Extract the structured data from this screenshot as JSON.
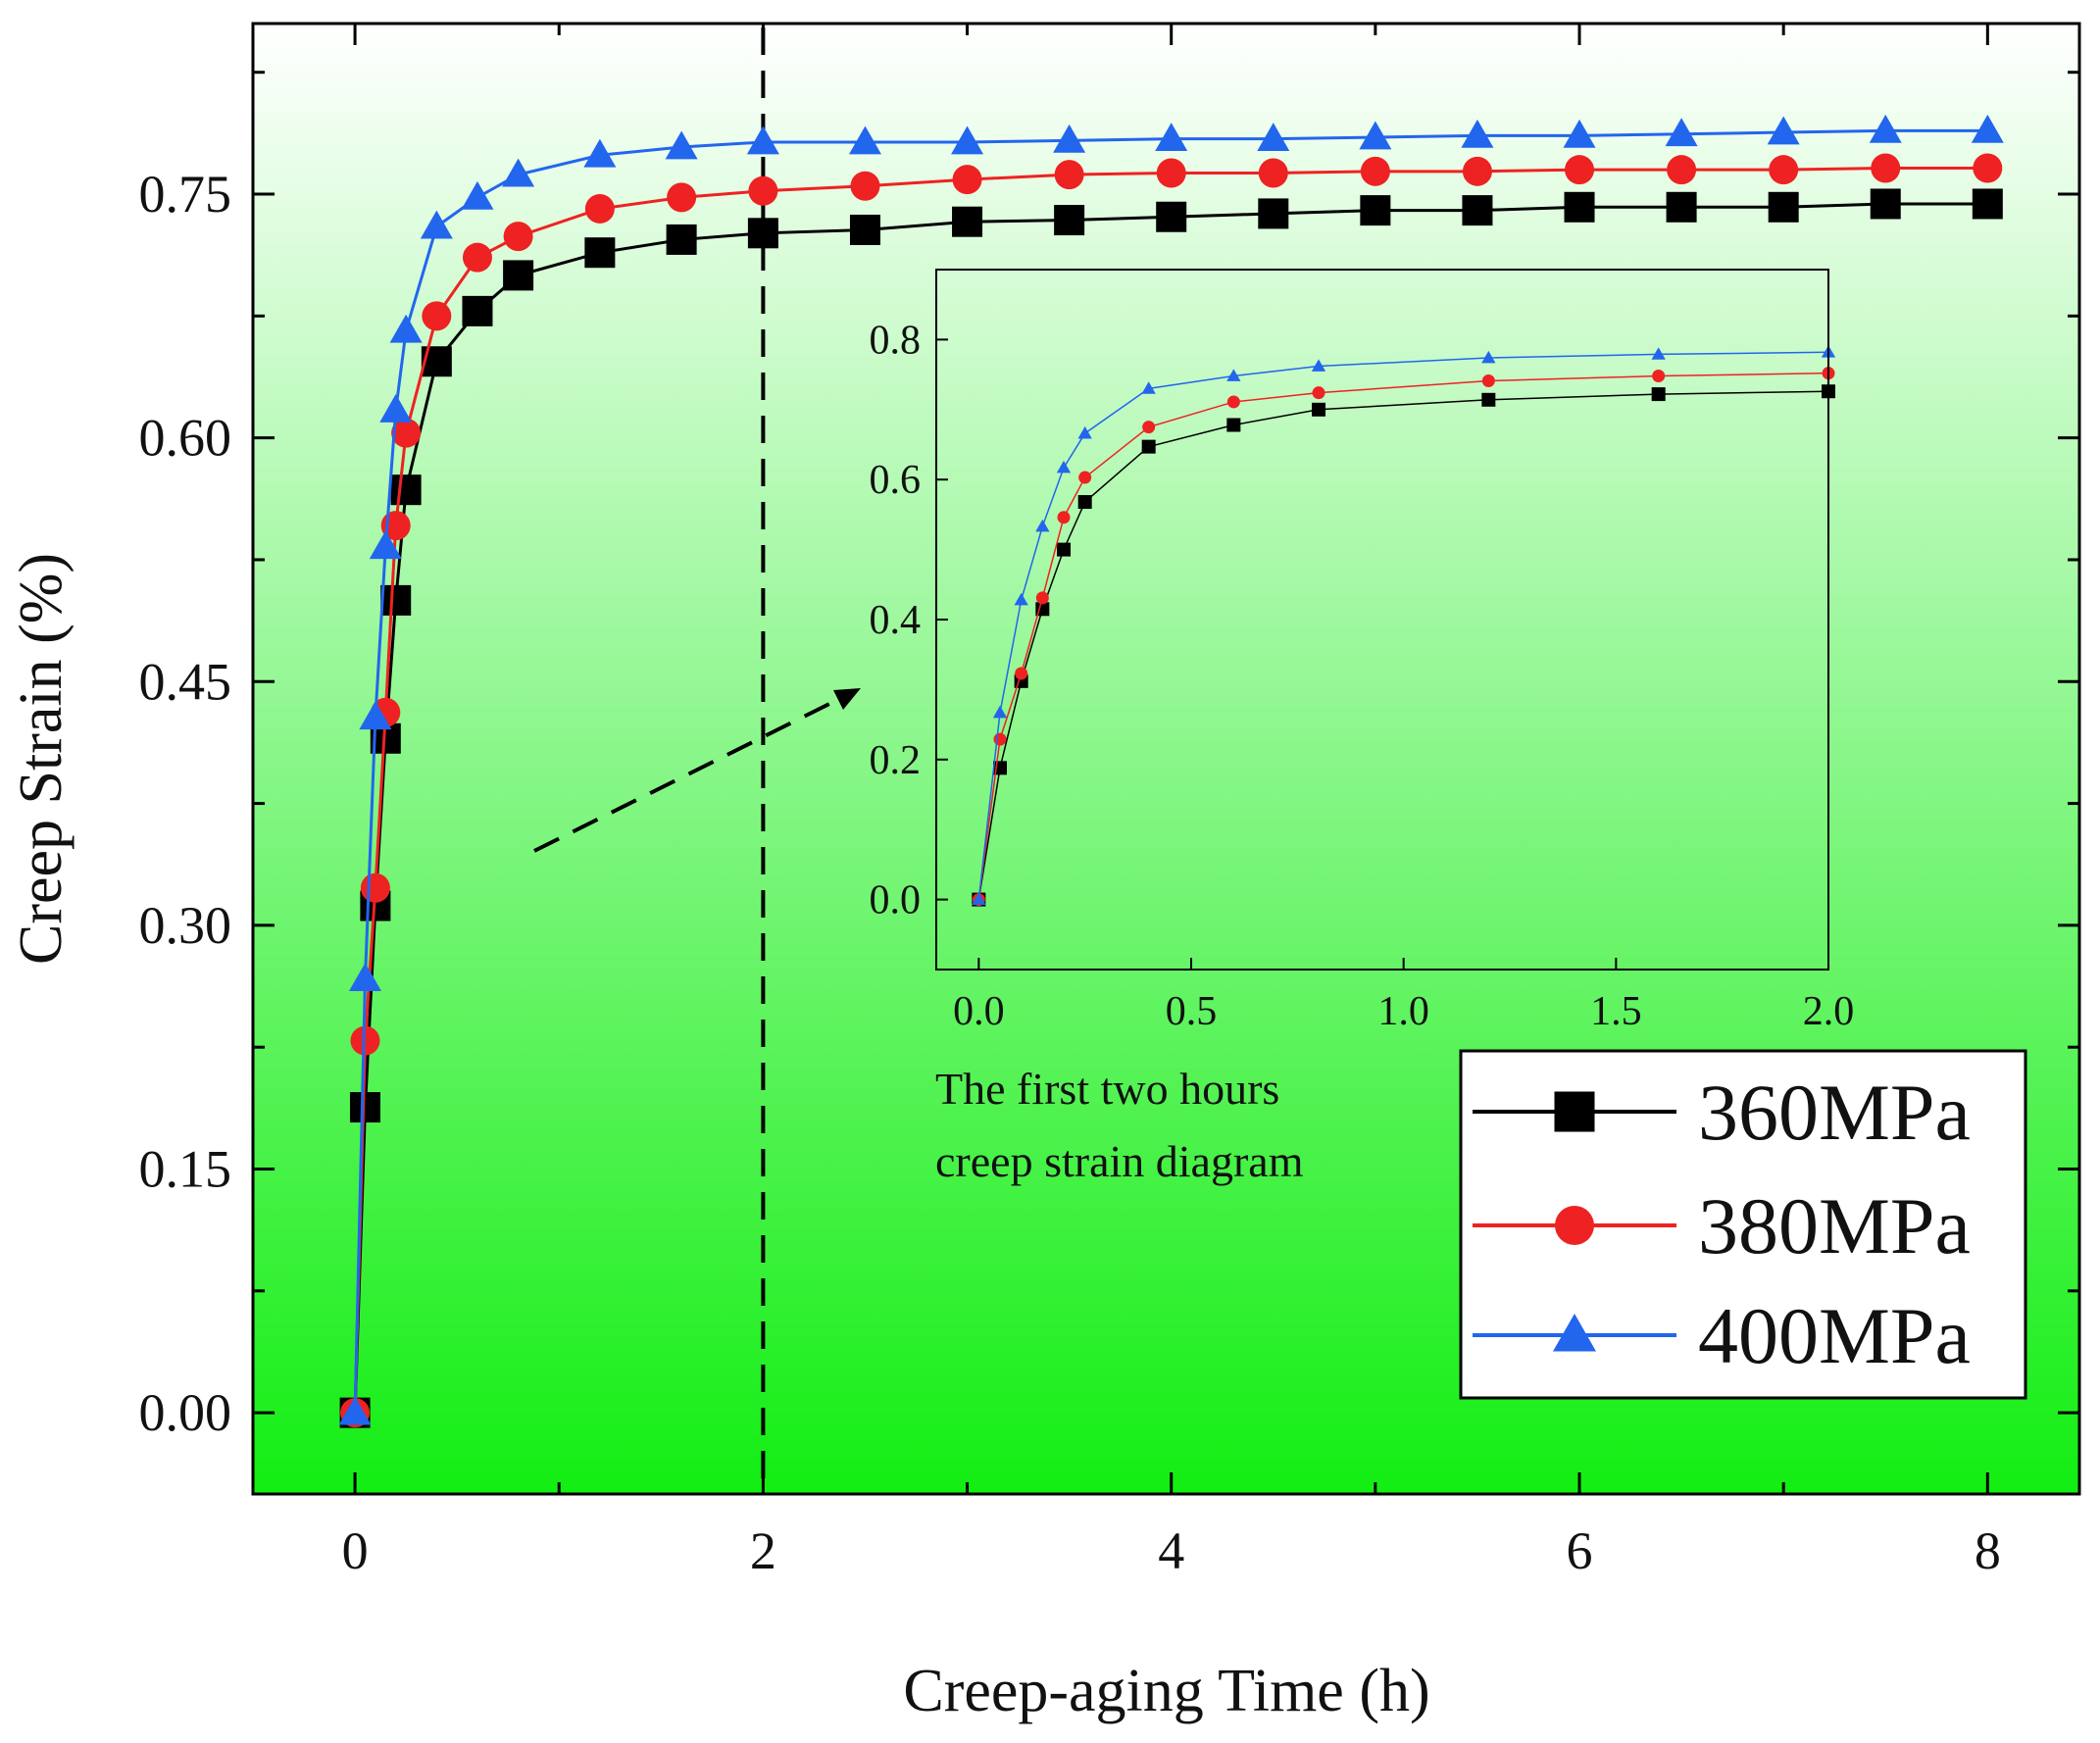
{
  "chart_data": {
    "type": "line",
    "background_gradient": [
      "#ffffff",
      "#12ee12"
    ],
    "main": {
      "xlabel": "Creep-aging Time (h)",
      "ylabel": "Creep Strain (%)",
      "xlim": [
        -0.5,
        8.45
      ],
      "ylim": [
        -0.05,
        0.855
      ],
      "xticks": [
        0,
        2,
        4,
        6,
        8
      ],
      "xtick_labels": [
        "0",
        "2",
        "4",
        "6",
        "8"
      ],
      "yticks": [
        0,
        0.15,
        0.3,
        0.45,
        0.6,
        0.75
      ],
      "ytick_labels": [
        "0.00",
        "0.15",
        "0.30",
        "0.45",
        "0.60",
        "0.75"
      ],
      "reference_line_x": 2,
      "series": [
        {
          "name": "360MPa",
          "color": "#000000",
          "marker": "square",
          "x": [
            0,
            0.05,
            0.1,
            0.15,
            0.2,
            0.25,
            0.4,
            0.6,
            0.8,
            1.2,
            1.6,
            2.0,
            2.5,
            3.0,
            3.5,
            4.0,
            4.5,
            5.0,
            5.5,
            6.0,
            6.5,
            7.0,
            7.5,
            8.0
          ],
          "values": [
            0,
            0.188,
            0.312,
            0.415,
            0.5,
            0.568,
            0.647,
            0.678,
            0.7,
            0.714,
            0.722,
            0.726,
            0.728,
            0.733,
            0.734,
            0.736,
            0.738,
            0.74,
            0.74,
            0.742,
            0.742,
            0.742,
            0.744,
            0.744
          ]
        },
        {
          "name": "380MPa",
          "color": "#ee2222",
          "marker": "circle",
          "x": [
            0,
            0.05,
            0.1,
            0.15,
            0.2,
            0.25,
            0.4,
            0.6,
            0.8,
            1.2,
            1.6,
            2.0,
            2.5,
            3.0,
            3.5,
            4.0,
            4.5,
            5.0,
            5.5,
            6.0,
            6.5,
            7.0,
            7.5,
            8.0
          ],
          "values": [
            0,
            0.229,
            0.323,
            0.431,
            0.546,
            0.603,
            0.675,
            0.711,
            0.724,
            0.741,
            0.748,
            0.752,
            0.755,
            0.759,
            0.762,
            0.763,
            0.763,
            0.764,
            0.764,
            0.765,
            0.765,
            0.765,
            0.766,
            0.766
          ]
        },
        {
          "name": "400MPa",
          "color": "#2266ee",
          "marker": "triangle",
          "x": [
            0,
            0.05,
            0.1,
            0.15,
            0.2,
            0.25,
            0.4,
            0.6,
            0.8,
            1.2,
            1.6,
            2.0,
            2.5,
            3.0,
            3.5,
            4.0,
            4.5,
            5.0,
            5.5,
            6.0,
            6.5,
            7.0,
            7.5,
            8.0
          ],
          "values": [
            0,
            0.267,
            0.428,
            0.533,
            0.617,
            0.666,
            0.73,
            0.748,
            0.762,
            0.774,
            0.779,
            0.782,
            0.782,
            0.782,
            0.783,
            0.784,
            0.784,
            0.785,
            0.786,
            0.786,
            0.787,
            0.788,
            0.789,
            0.789
          ]
        }
      ]
    },
    "inset": {
      "xlim": [
        -0.1,
        2.0
      ],
      "ylim": [
        -0.1,
        0.9
      ],
      "xticks": [
        0,
        0.5,
        1.0,
        1.5,
        2.0
      ],
      "xtick_labels": [
        "0.0",
        "0.5",
        "1.0",
        "1.5",
        "2.0"
      ],
      "yticks": [
        0,
        0.2,
        0.4,
        0.6,
        0.8
      ],
      "ytick_labels": [
        "0.0",
        "0.2",
        "0.4",
        "0.6",
        "0.8"
      ],
      "caption_line1": "The first two hours",
      "caption_line2": "creep strain diagram",
      "series_names": [
        "360MPa",
        "380MPa",
        "400MPa"
      ],
      "x": [
        0,
        0.05,
        0.1,
        0.15,
        0.2,
        0.25,
        0.4,
        0.6,
        0.8,
        1.2,
        1.6,
        2.0
      ]
    },
    "legend": {
      "placement": "bottom-right",
      "entries": [
        "360MPa",
        "380MPa",
        "400MPa"
      ]
    }
  }
}
